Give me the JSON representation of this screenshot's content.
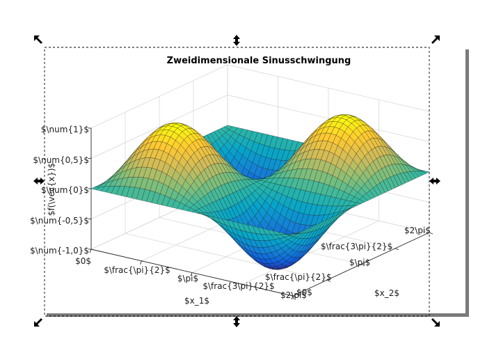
{
  "chart_data": {
    "type": "surface",
    "title": "Zweidimensionale Sinusschwingung",
    "function": "f(x1,x2) = sin(x1) * sin(x2)",
    "xlabel": "$x_1$",
    "ylabel": "$x_2$",
    "zlabel": "$f(\\vec{x})$",
    "xlim": [
      0,
      6.2832
    ],
    "ylim": [
      0,
      6.2832
    ],
    "zlim": [
      -1,
      1
    ],
    "x_ticks": [
      0,
      1.5708,
      3.1416,
      4.7124,
      6.2832
    ],
    "x_tick_labels": [
      "$0$",
      "$\\frac{\\pi}{2}$",
      "$\\pi$",
      "$\\frac{3\\pi}{2}$",
      "$2\\pi$"
    ],
    "y_ticks": [
      0,
      1.5708,
      3.1416,
      4.7124,
      6.2832
    ],
    "y_tick_labels": [
      "$0$",
      "$\\frac{\\pi}{2}$",
      "$\\pi$",
      "$\\frac{3\\pi}{2}$",
      "$2\\pi$"
    ],
    "z_ticks": [
      -1,
      -0.5,
      0,
      0.5,
      1
    ],
    "z_tick_labels": [
      "$\\num{-1,0}$",
      "$\\num{-0,5}$",
      "$\\num{0}$",
      "$\\num{0,5}$",
      "$\\num{1}$"
    ],
    "grid": true,
    "colormap": "parula",
    "colormap_stops": [
      "#352a87",
      "#0f5cdd",
      "#1481d6",
      "#06a4ca",
      "#2eb7a4",
      "#87bf77",
      "#d1bb59",
      "#fec832",
      "#f9fb0e"
    ],
    "mesh_resolution": 40,
    "view": "default 3D (azimuth -37.5, elevation 30)"
  },
  "selection": {
    "handle_color": "#000000",
    "frame_color": "#000000",
    "shadow_color": "#7a7a7a"
  }
}
